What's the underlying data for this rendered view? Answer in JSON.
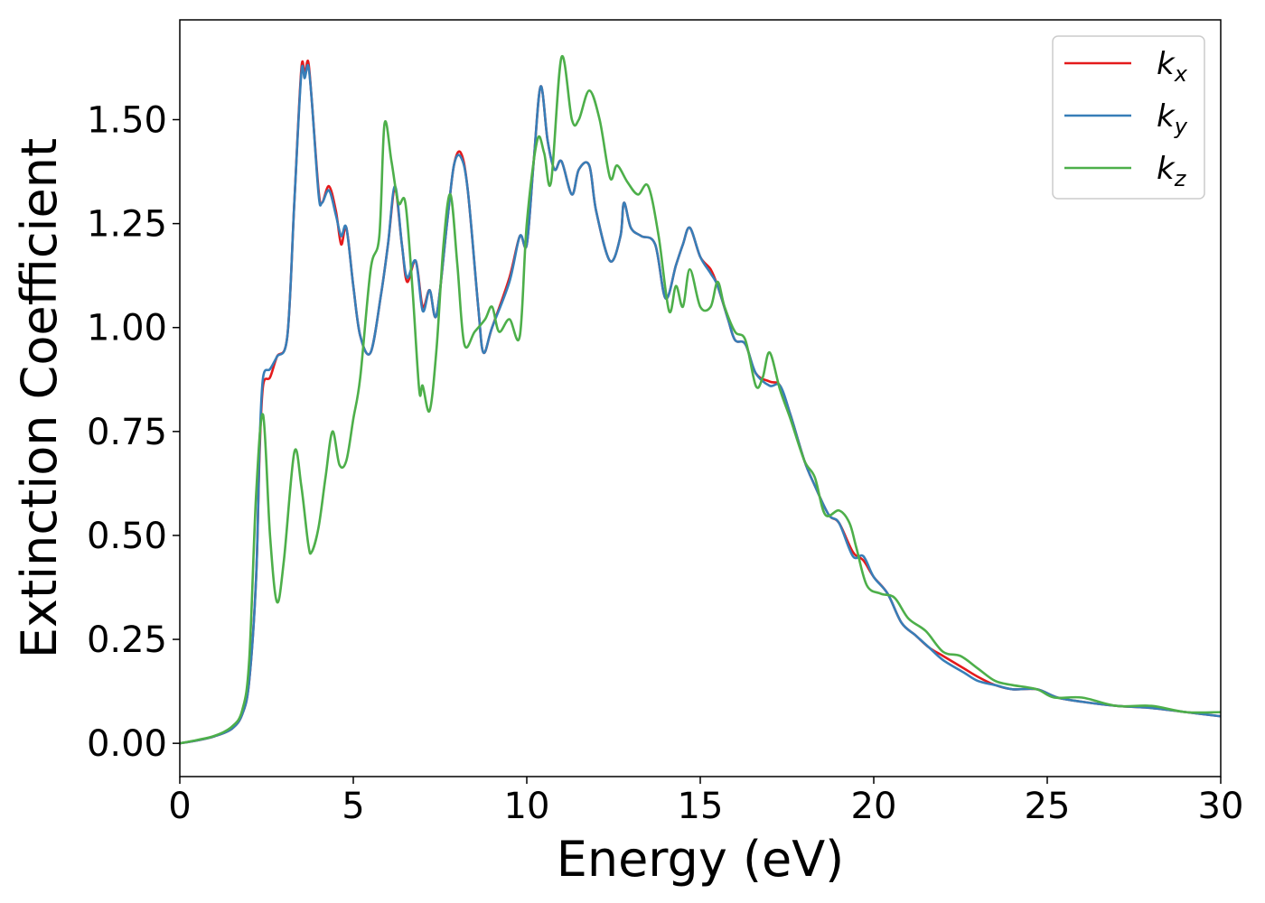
{
  "chart_data": {
    "type": "line",
    "title": "",
    "xlabel": "Energy (eV)",
    "ylabel": "Extinction Coefficient",
    "xlim": [
      0,
      30
    ],
    "ylim": [
      -0.08,
      1.74
    ],
    "xticks": [
      "0",
      "5",
      "10",
      "15",
      "20",
      "25",
      "30"
    ],
    "yticks": [
      "0.00",
      "0.25",
      "0.50",
      "0.75",
      "1.00",
      "1.25",
      "1.50"
    ],
    "grid": false,
    "legend_position": "top-right",
    "series": [
      {
        "name": "k_x",
        "label_main": "k",
        "label_sub": "x",
        "color": "#e41a1c",
        "points": [
          [
            0,
            0.0
          ],
          [
            0.5,
            0.007
          ],
          [
            1.0,
            0.017
          ],
          [
            1.5,
            0.035
          ],
          [
            1.8,
            0.07
          ],
          [
            2.0,
            0.15
          ],
          [
            2.2,
            0.4
          ],
          [
            2.3,
            0.7
          ],
          [
            2.4,
            0.86
          ],
          [
            2.6,
            0.88
          ],
          [
            2.8,
            0.93
          ],
          [
            3.1,
            0.98
          ],
          [
            3.3,
            1.3
          ],
          [
            3.5,
            1.62
          ],
          [
            3.6,
            1.61
          ],
          [
            3.7,
            1.64
          ],
          [
            3.8,
            1.55
          ],
          [
            4.0,
            1.33
          ],
          [
            4.1,
            1.3
          ],
          [
            4.3,
            1.34
          ],
          [
            4.5,
            1.28
          ],
          [
            4.65,
            1.2
          ],
          [
            4.8,
            1.24
          ],
          [
            5.0,
            1.1
          ],
          [
            5.2,
            0.98
          ],
          [
            5.5,
            0.94
          ],
          [
            5.8,
            1.08
          ],
          [
            6.0,
            1.2
          ],
          [
            6.2,
            1.33
          ],
          [
            6.4,
            1.2
          ],
          [
            6.55,
            1.11
          ],
          [
            6.8,
            1.16
          ],
          [
            7.0,
            1.05
          ],
          [
            7.2,
            1.09
          ],
          [
            7.4,
            1.03
          ],
          [
            7.7,
            1.25
          ],
          [
            7.9,
            1.39
          ],
          [
            8.1,
            1.42
          ],
          [
            8.3,
            1.33
          ],
          [
            8.6,
            1.05
          ],
          [
            8.75,
            0.94
          ],
          [
            9.0,
            1.0
          ],
          [
            9.5,
            1.12
          ],
          [
            9.8,
            1.22
          ],
          [
            10.0,
            1.2
          ],
          [
            10.2,
            1.4
          ],
          [
            10.4,
            1.58
          ],
          [
            10.6,
            1.45
          ],
          [
            10.8,
            1.38
          ],
          [
            11.0,
            1.4
          ],
          [
            11.3,
            1.32
          ],
          [
            11.5,
            1.38
          ],
          [
            11.8,
            1.39
          ],
          [
            12.0,
            1.28
          ],
          [
            12.4,
            1.16
          ],
          [
            12.7,
            1.22
          ],
          [
            12.8,
            1.3
          ],
          [
            13.0,
            1.24
          ],
          [
            13.3,
            1.22
          ],
          [
            13.7,
            1.2
          ],
          [
            14.0,
            1.07
          ],
          [
            14.3,
            1.15
          ],
          [
            14.5,
            1.2
          ],
          [
            14.7,
            1.24
          ],
          [
            15.0,
            1.17
          ],
          [
            15.3,
            1.14
          ],
          [
            15.5,
            1.1
          ],
          [
            15.8,
            1.02
          ],
          [
            16.0,
            0.97
          ],
          [
            16.3,
            0.96
          ],
          [
            16.6,
            0.89
          ],
          [
            17.0,
            0.87
          ],
          [
            17.3,
            0.86
          ],
          [
            17.6,
            0.79
          ],
          [
            18.0,
            0.68
          ],
          [
            18.3,
            0.62
          ],
          [
            18.7,
            0.55
          ],
          [
            19.0,
            0.53
          ],
          [
            19.4,
            0.46
          ],
          [
            19.7,
            0.44
          ],
          [
            20.0,
            0.4
          ],
          [
            20.4,
            0.36
          ],
          [
            20.8,
            0.29
          ],
          [
            21.2,
            0.26
          ],
          [
            21.6,
            0.23
          ],
          [
            22.0,
            0.21
          ],
          [
            22.6,
            0.18
          ],
          [
            23.0,
            0.16
          ],
          [
            23.5,
            0.14
          ],
          [
            24.0,
            0.13
          ],
          [
            24.7,
            0.13
          ],
          [
            25.3,
            0.11
          ],
          [
            26.0,
            0.1
          ],
          [
            27.0,
            0.09
          ],
          [
            28.0,
            0.085
          ],
          [
            29.0,
            0.075
          ],
          [
            30.0,
            0.065
          ]
        ]
      },
      {
        "name": "k_y",
        "label_main": "k",
        "label_sub": "y",
        "color": "#377eb8",
        "points": [
          [
            0,
            0.0
          ],
          [
            0.5,
            0.007
          ],
          [
            1.0,
            0.017
          ],
          [
            1.5,
            0.035
          ],
          [
            1.8,
            0.07
          ],
          [
            2.0,
            0.15
          ],
          [
            2.2,
            0.4
          ],
          [
            2.3,
            0.72
          ],
          [
            2.4,
            0.88
          ],
          [
            2.6,
            0.9
          ],
          [
            2.8,
            0.93
          ],
          [
            3.1,
            0.98
          ],
          [
            3.3,
            1.3
          ],
          [
            3.5,
            1.61
          ],
          [
            3.6,
            1.6
          ],
          [
            3.7,
            1.63
          ],
          [
            3.8,
            1.55
          ],
          [
            4.0,
            1.32
          ],
          [
            4.1,
            1.3
          ],
          [
            4.3,
            1.33
          ],
          [
            4.5,
            1.27
          ],
          [
            4.65,
            1.22
          ],
          [
            4.8,
            1.24
          ],
          [
            5.0,
            1.1
          ],
          [
            5.2,
            0.98
          ],
          [
            5.5,
            0.94
          ],
          [
            5.8,
            1.08
          ],
          [
            6.0,
            1.2
          ],
          [
            6.2,
            1.34
          ],
          [
            6.4,
            1.2
          ],
          [
            6.55,
            1.12
          ],
          [
            6.8,
            1.16
          ],
          [
            7.0,
            1.04
          ],
          [
            7.2,
            1.09
          ],
          [
            7.4,
            1.03
          ],
          [
            7.7,
            1.25
          ],
          [
            7.9,
            1.39
          ],
          [
            8.1,
            1.41
          ],
          [
            8.3,
            1.33
          ],
          [
            8.6,
            1.05
          ],
          [
            8.75,
            0.94
          ],
          [
            9.0,
            1.0
          ],
          [
            9.5,
            1.11
          ],
          [
            9.8,
            1.22
          ],
          [
            10.0,
            1.2
          ],
          [
            10.2,
            1.4
          ],
          [
            10.4,
            1.58
          ],
          [
            10.6,
            1.45
          ],
          [
            10.8,
            1.38
          ],
          [
            11.0,
            1.4
          ],
          [
            11.3,
            1.32
          ],
          [
            11.5,
            1.38
          ],
          [
            11.8,
            1.39
          ],
          [
            12.0,
            1.28
          ],
          [
            12.4,
            1.16
          ],
          [
            12.7,
            1.22
          ],
          [
            12.8,
            1.3
          ],
          [
            13.0,
            1.24
          ],
          [
            13.3,
            1.22
          ],
          [
            13.7,
            1.2
          ],
          [
            14.0,
            1.07
          ],
          [
            14.3,
            1.15
          ],
          [
            14.5,
            1.2
          ],
          [
            14.7,
            1.24
          ],
          [
            15.0,
            1.17
          ],
          [
            15.3,
            1.13
          ],
          [
            15.5,
            1.1
          ],
          [
            15.8,
            1.02
          ],
          [
            16.0,
            0.97
          ],
          [
            16.3,
            0.96
          ],
          [
            16.6,
            0.89
          ],
          [
            17.0,
            0.86
          ],
          [
            17.3,
            0.86
          ],
          [
            17.6,
            0.79
          ],
          [
            18.0,
            0.68
          ],
          [
            18.3,
            0.62
          ],
          [
            18.7,
            0.55
          ],
          [
            19.0,
            0.53
          ],
          [
            19.4,
            0.45
          ],
          [
            19.7,
            0.45
          ],
          [
            20.0,
            0.4
          ],
          [
            20.4,
            0.36
          ],
          [
            20.8,
            0.29
          ],
          [
            21.2,
            0.26
          ],
          [
            21.6,
            0.23
          ],
          [
            22.0,
            0.2
          ],
          [
            22.6,
            0.17
          ],
          [
            23.0,
            0.15
          ],
          [
            23.5,
            0.14
          ],
          [
            24.0,
            0.13
          ],
          [
            24.7,
            0.13
          ],
          [
            25.3,
            0.11
          ],
          [
            26.0,
            0.1
          ],
          [
            27.0,
            0.09
          ],
          [
            28.0,
            0.085
          ],
          [
            29.0,
            0.075
          ],
          [
            30.0,
            0.065
          ]
        ]
      },
      {
        "name": "k_z",
        "label_main": "k",
        "label_sub": "z",
        "color": "#4daf4a",
        "points": [
          [
            0,
            0.0
          ],
          [
            0.5,
            0.008
          ],
          [
            1.0,
            0.018
          ],
          [
            1.5,
            0.04
          ],
          [
            1.8,
            0.08
          ],
          [
            2.0,
            0.2
          ],
          [
            2.2,
            0.6
          ],
          [
            2.4,
            0.79
          ],
          [
            2.6,
            0.5
          ],
          [
            2.8,
            0.34
          ],
          [
            3.0,
            0.44
          ],
          [
            3.3,
            0.7
          ],
          [
            3.5,
            0.62
          ],
          [
            3.7,
            0.48
          ],
          [
            3.8,
            0.46
          ],
          [
            4.0,
            0.52
          ],
          [
            4.2,
            0.64
          ],
          [
            4.4,
            0.75
          ],
          [
            4.6,
            0.67
          ],
          [
            4.8,
            0.68
          ],
          [
            5.0,
            0.78
          ],
          [
            5.2,
            0.88
          ],
          [
            5.5,
            1.14
          ],
          [
            5.75,
            1.22
          ],
          [
            5.9,
            1.49
          ],
          [
            6.1,
            1.4
          ],
          [
            6.3,
            1.3
          ],
          [
            6.5,
            1.3
          ],
          [
            6.7,
            1.1
          ],
          [
            6.9,
            0.85
          ],
          [
            7.0,
            0.86
          ],
          [
            7.2,
            0.8
          ],
          [
            7.4,
            0.95
          ],
          [
            7.6,
            1.2
          ],
          [
            7.8,
            1.32
          ],
          [
            8.0,
            1.15
          ],
          [
            8.2,
            0.96
          ],
          [
            8.5,
            0.99
          ],
          [
            8.8,
            1.02
          ],
          [
            9.0,
            1.05
          ],
          [
            9.2,
            0.99
          ],
          [
            9.5,
            1.02
          ],
          [
            9.8,
            0.98
          ],
          [
            10.0,
            1.25
          ],
          [
            10.3,
            1.45
          ],
          [
            10.5,
            1.42
          ],
          [
            10.7,
            1.35
          ],
          [
            11.0,
            1.65
          ],
          [
            11.3,
            1.5
          ],
          [
            11.5,
            1.5
          ],
          [
            11.8,
            1.57
          ],
          [
            12.1,
            1.5
          ],
          [
            12.4,
            1.36
          ],
          [
            12.6,
            1.39
          ],
          [
            12.9,
            1.35
          ],
          [
            13.2,
            1.32
          ],
          [
            13.5,
            1.34
          ],
          [
            13.8,
            1.22
          ],
          [
            14.1,
            1.04
          ],
          [
            14.3,
            1.1
          ],
          [
            14.5,
            1.05
          ],
          [
            14.7,
            1.14
          ],
          [
            15.0,
            1.05
          ],
          [
            15.3,
            1.05
          ],
          [
            15.5,
            1.11
          ],
          [
            15.7,
            1.05
          ],
          [
            16.0,
            0.99
          ],
          [
            16.3,
            0.97
          ],
          [
            16.6,
            0.86
          ],
          [
            16.8,
            0.88
          ],
          [
            17.0,
            0.94
          ],
          [
            17.3,
            0.85
          ],
          [
            17.6,
            0.78
          ],
          [
            18.0,
            0.68
          ],
          [
            18.3,
            0.64
          ],
          [
            18.6,
            0.55
          ],
          [
            19.0,
            0.56
          ],
          [
            19.3,
            0.53
          ],
          [
            19.5,
            0.47
          ],
          [
            19.8,
            0.38
          ],
          [
            20.2,
            0.36
          ],
          [
            20.6,
            0.35
          ],
          [
            21.0,
            0.3
          ],
          [
            21.5,
            0.27
          ],
          [
            22.0,
            0.22
          ],
          [
            22.5,
            0.21
          ],
          [
            23.0,
            0.18
          ],
          [
            23.5,
            0.15
          ],
          [
            24.0,
            0.14
          ],
          [
            24.7,
            0.13
          ],
          [
            25.2,
            0.11
          ],
          [
            26.0,
            0.11
          ],
          [
            27.0,
            0.09
          ],
          [
            28.0,
            0.09
          ],
          [
            29.0,
            0.075
          ],
          [
            30.0,
            0.075
          ]
        ]
      }
    ]
  }
}
